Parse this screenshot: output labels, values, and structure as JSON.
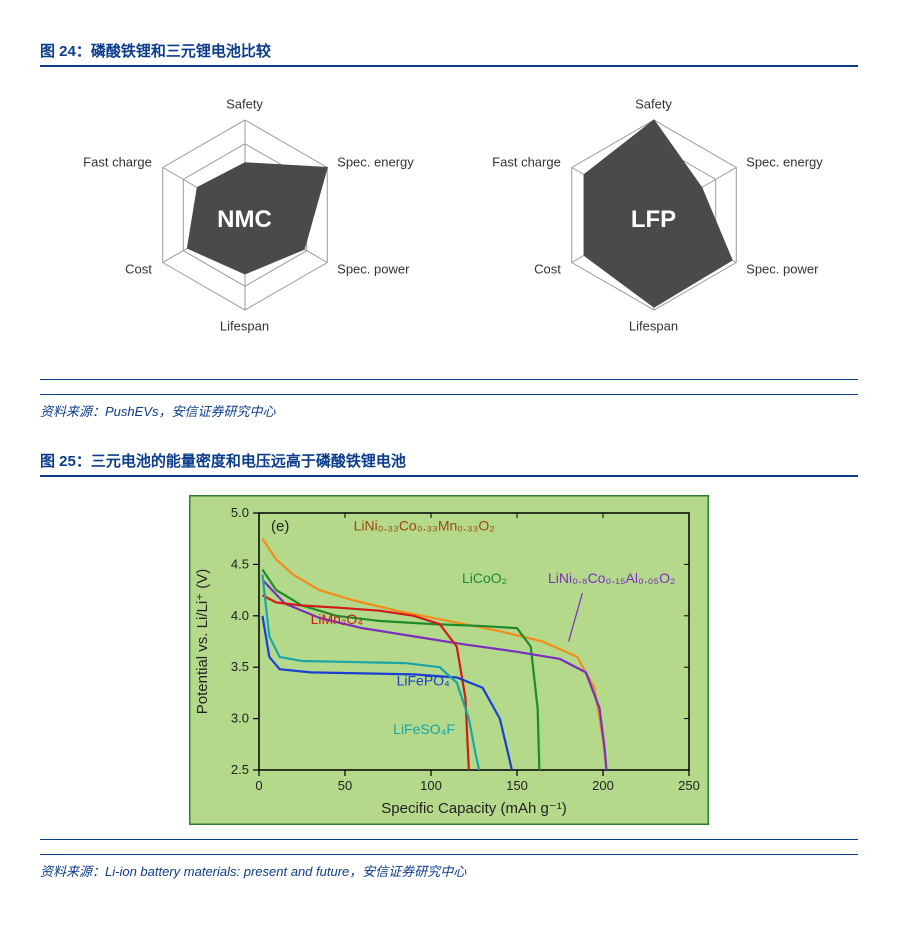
{
  "figure24": {
    "title": "图 24：磷酸铁锂和三元锂电池比较",
    "source_prefix": "资料来源：",
    "source": "PushEVs，安信证券研究中心",
    "radar": {
      "axes": [
        "Safety",
        "Spec. energy",
        "Spec. power",
        "Lifespan",
        "Cost",
        "Fast charge"
      ],
      "rings": 4,
      "fill_color": "#4a4a4a",
      "grid_color": "#999999",
      "label_fontsize": 13,
      "charts": [
        {
          "name": "NMC",
          "values": [
            0.55,
            1.0,
            0.72,
            0.62,
            0.7,
            0.58
          ]
        },
        {
          "name": "LFP",
          "values": [
            1.0,
            0.58,
            0.95,
            0.97,
            0.85,
            0.85
          ]
        }
      ]
    }
  },
  "figure25": {
    "title": "图 25：三元电池的能量密度和电压远高于磷酸铁锂电池",
    "source_prefix": "资料来源：",
    "source": "Li-ion battery materials: present and future，安信证券研究中心",
    "chart": {
      "type": "line",
      "panel_label": "(e)",
      "background_color": "#b4d98a",
      "outer_border_color": "#2e7d32",
      "axis_color": "#000000",
      "tick_fontsize": 13,
      "axis_title_fontsize": 15,
      "x": {
        "label": "Specific Capacity (mAh g⁻¹)",
        "min": 0,
        "max": 250,
        "ticks": [
          0,
          50,
          100,
          150,
          200,
          250
        ]
      },
      "y": {
        "label": "Potential vs. Li/Li⁺ (V)",
        "min": 2.5,
        "max": 5.0,
        "ticks": [
          2.5,
          3.0,
          3.5,
          4.0,
          4.5,
          5.0
        ]
      },
      "line_width": 2.2,
      "series": [
        {
          "name": "LiNi₀.₃₃Co₀.₃₃Mn₀.₃₃O₂",
          "color": "#f28c1a",
          "label_color": "#9c4a0e",
          "label_xy": [
            55,
            4.83
          ],
          "points": [
            [
              2,
              4.75
            ],
            [
              10,
              4.55
            ],
            [
              20,
              4.4
            ],
            [
              35,
              4.25
            ],
            [
              55,
              4.15
            ],
            [
              80,
              4.05
            ],
            [
              110,
              3.95
            ],
            [
              140,
              3.85
            ],
            [
              165,
              3.75
            ],
            [
              185,
              3.6
            ],
            [
              195,
              3.3
            ],
            [
              200,
              2.8
            ],
            [
              202,
              2.5
            ]
          ]
        },
        {
          "name": "LiCoO₂",
          "color": "#1f8a2e",
          "label_color": "#1f8a2e",
          "label_xy": [
            118,
            4.32
          ],
          "points": [
            [
              2,
              4.45
            ],
            [
              10,
              4.25
            ],
            [
              25,
              4.1
            ],
            [
              45,
              4.0
            ],
            [
              70,
              3.95
            ],
            [
              100,
              3.92
            ],
            [
              130,
              3.9
            ],
            [
              150,
              3.88
            ],
            [
              158,
              3.7
            ],
            [
              162,
              3.1
            ],
            [
              163,
              2.5
            ]
          ]
        },
        {
          "name": "LiNi₀.₈Co₀.₁₅Al₀.₀₅O₂",
          "color": "#7b2fbf",
          "label_color": "#7b2fbf",
          "label_xy": [
            168,
            4.32
          ],
          "leader": [
            [
              188,
              4.22
            ],
            [
              180,
              3.75
            ]
          ],
          "points": [
            [
              2,
              4.35
            ],
            [
              15,
              4.12
            ],
            [
              35,
              3.98
            ],
            [
              60,
              3.88
            ],
            [
              90,
              3.8
            ],
            [
              120,
              3.72
            ],
            [
              150,
              3.65
            ],
            [
              175,
              3.58
            ],
            [
              190,
              3.45
            ],
            [
              198,
              3.1
            ],
            [
              201,
              2.7
            ],
            [
              202,
              2.5
            ]
          ]
        },
        {
          "name": "LiMn₂O₄",
          "color": "#d11a1a",
          "label_color": "#d11a1a",
          "label_xy": [
            30,
            3.92
          ],
          "points": [
            [
              2,
              4.2
            ],
            [
              10,
              4.13
            ],
            [
              25,
              4.1
            ],
            [
              45,
              4.08
            ],
            [
              70,
              4.05
            ],
            [
              90,
              4.0
            ],
            [
              105,
              3.92
            ],
            [
              115,
              3.7
            ],
            [
              120,
              3.2
            ],
            [
              122,
              2.5
            ]
          ]
        },
        {
          "name": "LiFePO₄",
          "color": "#1a3fd1",
          "label_color": "#1a3fd1",
          "label_xy": [
            80,
            3.32
          ],
          "points": [
            [
              2,
              4.0
            ],
            [
              6,
              3.6
            ],
            [
              12,
              3.48
            ],
            [
              30,
              3.45
            ],
            [
              60,
              3.44
            ],
            [
              90,
              3.43
            ],
            [
              115,
              3.4
            ],
            [
              130,
              3.3
            ],
            [
              140,
              3.0
            ],
            [
              145,
              2.65
            ],
            [
              147,
              2.5
            ]
          ]
        },
        {
          "name": "LiFeSO₄F",
          "color": "#1aa6a6",
          "label_color": "#1aa6a6",
          "label_xy": [
            78,
            2.85
          ],
          "points": [
            [
              2,
              4.4
            ],
            [
              6,
              3.8
            ],
            [
              12,
              3.6
            ],
            [
              25,
              3.56
            ],
            [
              55,
              3.55
            ],
            [
              85,
              3.54
            ],
            [
              105,
              3.5
            ],
            [
              115,
              3.35
            ],
            [
              122,
              3.0
            ],
            [
              126,
              2.65
            ],
            [
              128,
              2.5
            ]
          ]
        }
      ]
    }
  }
}
